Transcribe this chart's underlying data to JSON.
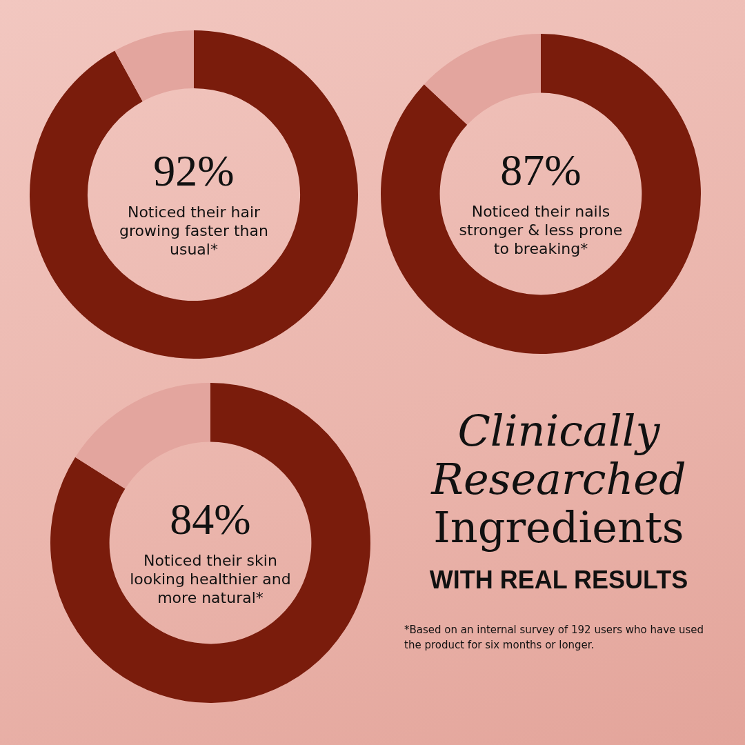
{
  "chart_data": [
    {
      "type": "donut",
      "categories": [
        null,
        null
      ],
      "values": [
        92,
        8
      ],
      "colors": [
        "#7a1c0c",
        "#e3a59e"
      ],
      "value_labels": [
        "92%",
        null
      ],
      "annotations": [
        "Noticed their hair growing faster than usual*"
      ],
      "legend": false
    },
    {
      "type": "donut",
      "categories": [
        null,
        null
      ],
      "values": [
        87,
        13
      ],
      "colors": [
        "#7a1c0c",
        "#e3a59e"
      ],
      "value_labels": [
        "87%",
        null
      ],
      "annotations": [
        "Noticed their nails stronger & less prone to breaking*"
      ],
      "legend": false
    },
    {
      "type": "donut",
      "categories": [
        null,
        null
      ],
      "values": [
        84,
        16
      ],
      "colors": [
        "#7a1c0c",
        "#e3a59e"
      ],
      "value_labels": [
        "84%",
        null
      ],
      "annotations": [
        "Noticed their skin looking healthier and more natural*"
      ],
      "legend": false
    },
    {
      "type": "other",
      "title": "Clinically Researched Ingredients",
      "subtitle": "WITH REAL RESULTS",
      "annotations": [
        "*Based on an internal survey of 192 users who have used the product for six months or longer."
      ]
    }
  ]
}
